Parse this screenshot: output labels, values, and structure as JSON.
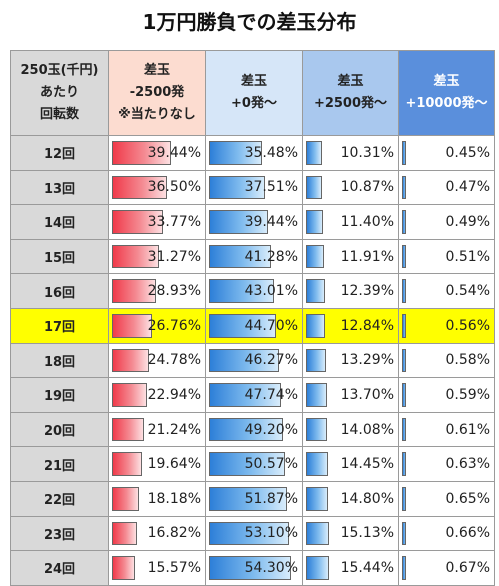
{
  "title": "1万円勝負での差玉分布",
  "headers": [
    [
      "250玉(千円)",
      "あたり",
      "回転数"
    ],
    [
      "差玉",
      "-2500発",
      "※当たりなし"
    ],
    [
      "差玉",
      "+0発～"
    ],
    [
      "差玉",
      "+2500発～"
    ],
    [
      "差玉",
      "+10000発～"
    ]
  ],
  "rows": [
    {
      "label": "12回",
      "values": [
        "39.44%",
        "35.48%",
        "10.31%",
        "0.45%"
      ]
    },
    {
      "label": "13回",
      "values": [
        "36.50%",
        "37.51%",
        "10.87%",
        "0.47%"
      ]
    },
    {
      "label": "14回",
      "values": [
        "33.77%",
        "39.44%",
        "11.40%",
        "0.49%"
      ]
    },
    {
      "label": "15回",
      "values": [
        "31.27%",
        "41.28%",
        "11.91%",
        "0.51%"
      ]
    },
    {
      "label": "16回",
      "values": [
        "28.93%",
        "43.01%",
        "12.39%",
        "0.54%"
      ]
    },
    {
      "label": "17回",
      "values": [
        "26.76%",
        "44.70%",
        "12.84%",
        "0.56%"
      ],
      "highlight": true
    },
    {
      "label": "18回",
      "values": [
        "24.78%",
        "46.27%",
        "13.29%",
        "0.58%"
      ]
    },
    {
      "label": "19回",
      "values": [
        "22.94%",
        "47.74%",
        "13.70%",
        "0.59%"
      ]
    },
    {
      "label": "20回",
      "values": [
        "21.24%",
        "49.20%",
        "14.08%",
        "0.61%"
      ]
    },
    {
      "label": "21回",
      "values": [
        "19.64%",
        "50.57%",
        "14.45%",
        "0.63%"
      ]
    },
    {
      "label": "22回",
      "values": [
        "18.18%",
        "51.87%",
        "14.80%",
        "0.65%"
      ]
    },
    {
      "label": "23回",
      "values": [
        "16.82%",
        "53.10%",
        "15.13%",
        "0.66%"
      ]
    },
    {
      "label": "24回",
      "values": [
        "15.57%",
        "54.30%",
        "15.44%",
        "0.67%"
      ]
    }
  ],
  "colors": {
    "highlight_row": "#ffff00",
    "loss_bar": "#f03a4a",
    "win_bar": "#2d7fd8",
    "header_gray": "#d9d9d9",
    "header_pink": "#fcdcd0",
    "header_lightblue": "#d6e6f8",
    "header_midblue": "#a9c8ee",
    "header_blue": "#5a8fdc"
  }
}
